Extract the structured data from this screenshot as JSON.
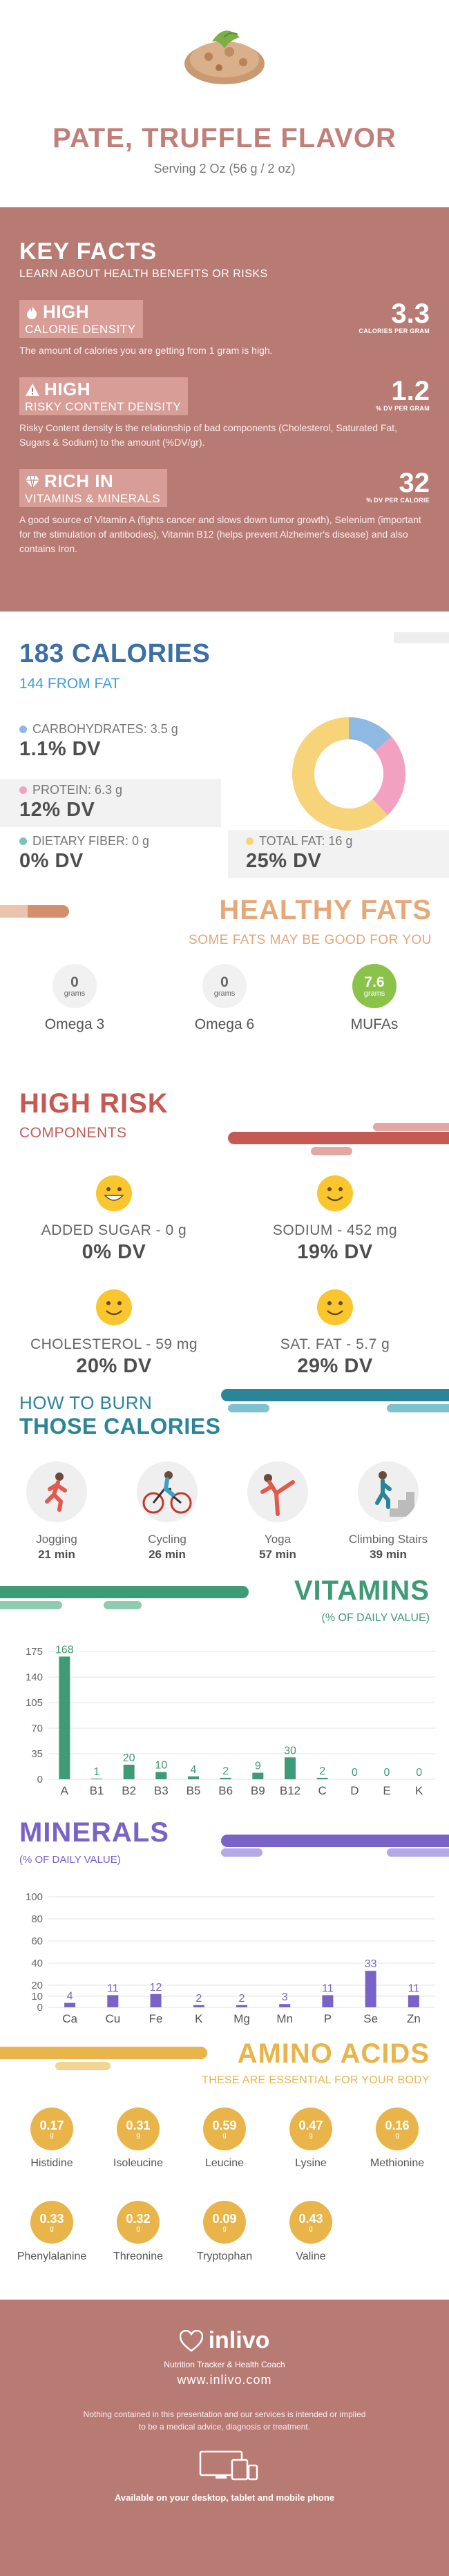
{
  "header": {
    "title": "PATE, TRUFFLE FLAVOR",
    "serving": "Serving 2 Oz (56 g / 2 oz)"
  },
  "key_facts": {
    "title": "KEY FACTS",
    "subtitle": "LEARN ABOUT HEALTH BENEFITS OR RISKS",
    "items": [
      {
        "icon": "flame-icon",
        "level": "HIGH",
        "label": "CALORIE DENSITY",
        "value": "3.3",
        "unit": "CALORIES PER GRAM",
        "desc": "The amount of calories you are getting from 1 gram is high."
      },
      {
        "icon": "warning-icon",
        "level": "HIGH",
        "label": "RISKY CONTENT DENSITY",
        "value": "1.2",
        "unit": "% DV PER GRAM",
        "desc": "Risky Content density is the relationship of bad components (Cholesterol, Saturated Fat, Sugars & Sodium) to the amount (%DV/gr)."
      },
      {
        "icon": "diamond-icon",
        "level": "RICH  IN",
        "label": "VITAMINS & MINERALS",
        "value": "32",
        "unit": "% DV PER CALORIE",
        "desc": "A good source of Vitamin A (fights cancer and slows down tumor growth), Selenium (important for the stimulation of antibodies), Vitamin B12 (helps prevent Alzheimer's disease) and also contains Iron."
      }
    ]
  },
  "calories": {
    "title": "183 CALORIES",
    "subtitle": "144 FROM FAT",
    "macros": [
      {
        "label": "CARBOHYDRATES: 3.5 g",
        "dv": "1.1% DV",
        "color": "#8db9e2"
      },
      {
        "label": "PROTEIN: 6.3 g",
        "dv": "12% DV",
        "color": "#f3a1c1"
      },
      {
        "label": "DIETARY FIBER: 0 g",
        "dv": "0% DV",
        "color": "#76c4ba"
      },
      {
        "label": "TOTAL FAT: 16 g",
        "dv": "25% DV",
        "color": "#f7d37a"
      }
    ]
  },
  "chart_data": [
    {
      "type": "pie",
      "title": "",
      "categories": [
        "Carbohydrates",
        "Protein",
        "Total Fat"
      ],
      "values": [
        3.5,
        6.3,
        16
      ],
      "colors": [
        "#8db9e2",
        "#f3a1c1",
        "#f7d37a"
      ]
    },
    {
      "type": "bar",
      "title": "VITAMINS",
      "subtitle": "(% OF DAILY VALUE)",
      "categories": [
        "A",
        "B1",
        "B2",
        "B3",
        "B5",
        "B6",
        "B9",
        "B12",
        "C",
        "D",
        "E",
        "K"
      ],
      "values": [
        168,
        1,
        20,
        10,
        4,
        2,
        9,
        30,
        2,
        0,
        0,
        0
      ],
      "ylim": [
        0,
        175
      ],
      "yticks": [
        0,
        35,
        70,
        105,
        140,
        175
      ],
      "color": "#3f9b75"
    },
    {
      "type": "bar",
      "title": "MINERALS",
      "subtitle": "(% OF DAILY VALUE)",
      "categories": [
        "Ca",
        "Cu",
        "Fe",
        "K",
        "Mg",
        "Mn",
        "P",
        "Se",
        "Zn"
      ],
      "values": [
        4,
        11,
        12,
        2,
        2,
        3,
        11,
        33,
        11
      ],
      "ylim": [
        0,
        100
      ],
      "yticks": [
        0,
        10,
        20,
        40,
        60,
        80,
        100
      ],
      "color": "#7a63c7"
    }
  ],
  "healthy_fats": {
    "title": "HEALTHY FATS",
    "subtitle": "SOME FATS MAY BE GOOD FOR YOU",
    "unit": "grams",
    "items": [
      {
        "name": "Omega 3",
        "value": "0"
      },
      {
        "name": "Omega 6",
        "value": "0"
      },
      {
        "name": "MUFAs",
        "value": "7.6",
        "color": "#8bc34a"
      }
    ]
  },
  "high_risk": {
    "title": "HIGH RISK",
    "subtitle": "COMPONENTS",
    "items": [
      {
        "label": "ADDED SUGAR - 0 g",
        "dv": "0% DV"
      },
      {
        "label": "SODIUM - 452 mg",
        "dv": "19% DV"
      },
      {
        "label": "CHOLESTEROL - 59 mg",
        "dv": "20% DV"
      },
      {
        "label": "SAT. FAT - 5.7 g",
        "dv": "29% DV"
      }
    ]
  },
  "burn": {
    "line1": "HOW TO BURN",
    "line2": "THOSE CALORIES",
    "items": [
      {
        "name": "Jogging",
        "minutes": "21 min"
      },
      {
        "name": "Cycling",
        "minutes": "26 min"
      },
      {
        "name": "Yoga",
        "minutes": "57 min"
      },
      {
        "name": "Climbing Stairs",
        "minutes": "39 min"
      }
    ]
  },
  "amino": {
    "title": "AMINO ACIDS",
    "subtitle": "THESE ARE ESSENTIAL FOR YOUR BODY",
    "unit": "g",
    "items": [
      {
        "name": "Histidine",
        "value": "0.17"
      },
      {
        "name": "Isoleucine",
        "value": "0.31"
      },
      {
        "name": "Leucine",
        "value": "0.59"
      },
      {
        "name": "Lysine",
        "value": "0.47"
      },
      {
        "name": "Methionine",
        "value": "0.16"
      },
      {
        "name": "Phenylalanine",
        "value": "0.33"
      },
      {
        "name": "Threonine",
        "value": "0.32"
      },
      {
        "name": "Tryptophan",
        "value": "0.09"
      },
      {
        "name": "Valine",
        "value": "0.43"
      }
    ]
  },
  "footer": {
    "brand": "inlivo",
    "tagline": "Nutrition Tracker & Health Coach",
    "url": "www.inlivo.com",
    "disclaimer": "Nothing contained in this presentation and our services is intended or implied to be a medical advice, diagnosis or treatment.",
    "available": "Available on your desktop, tablet and mobile phone"
  }
}
